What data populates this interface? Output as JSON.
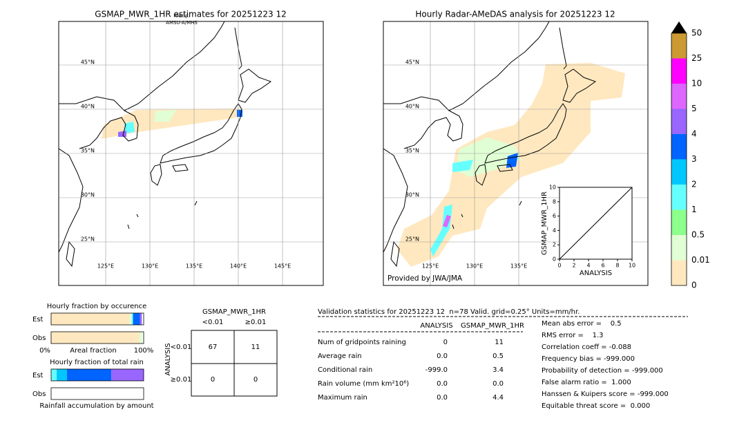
{
  "maps": [
    {
      "title": "GSMAP_MWR_1HR estimates for 20251223 12",
      "annotation": [
        "Precip.",
        "AMSU-A/MHS"
      ],
      "lat_labels": [
        "45°N",
        "40°N",
        "35°N",
        "30°N",
        "25°N"
      ],
      "lon_labels": [
        "125°E",
        "130°E",
        "135°E",
        "140°E",
        "145°E"
      ]
    },
    {
      "title": "Hourly Radar-AMeDAS analysis for 20251223 12",
      "credit": "Provided by JWA/JMA",
      "lat_labels": [
        "45°N",
        "40°N",
        "35°N",
        "30°N",
        "25°N"
      ],
      "lon_labels": [
        "125°E",
        "130°E",
        "135°E"
      ]
    }
  ],
  "colorbar": {
    "labels": [
      "0",
      "0.01",
      "0.5",
      "1",
      "2",
      "3",
      "4",
      "5",
      "10",
      "25",
      "50"
    ],
    "colors": [
      "#ffe8bf",
      "#e0ffd4",
      "#8cff8c",
      "#66ffff",
      "#00c8ff",
      "#0064ff",
      "#9966ff",
      "#dd66ff",
      "#ff00ff",
      "#cc9933"
    ]
  },
  "scatter_inset": {
    "xlabel": "ANALYSIS",
    "ylabel": "GSMAP_MWR_1HR",
    "xlim": [
      0,
      10
    ],
    "ylim": [
      0,
      10
    ],
    "xticks": [
      0,
      2,
      4,
      6,
      8,
      10
    ],
    "yticks": [
      0,
      2,
      4,
      6,
      8,
      10
    ]
  },
  "fraction_occurrence": {
    "title": "Hourly fraction by occurence",
    "axis_labels": [
      "0%",
      "Areal fraction",
      "100%"
    ],
    "rows": [
      {
        "label": "Est",
        "segments": [
          {
            "color": "#ffe8bf",
            "value": 85
          },
          {
            "color": "#e0ffd4",
            "value": 2
          },
          {
            "color": "#66ffff",
            "value": 1.5
          },
          {
            "color": "#0064ff",
            "value": 7.5
          },
          {
            "color": "#9966ff",
            "value": 2
          }
        ]
      },
      {
        "label": "Obs",
        "segments": [
          {
            "color": "#ffe8bf",
            "value": 95.5
          },
          {
            "color": "#e0ffd4",
            "value": 3
          }
        ]
      }
    ]
  },
  "fraction_rain": {
    "title": "Hourly fraction of total rain",
    "footer": "Rainfall accumulation by amount",
    "rows": [
      {
        "label": "Est",
        "segments": [
          {
            "color": "#66ffff",
            "value": 6
          },
          {
            "color": "#00c8ff",
            "value": 11
          },
          {
            "color": "#0064ff",
            "value": 48
          },
          {
            "color": "#9966ff",
            "value": 35
          }
        ]
      },
      {
        "label": "Obs",
        "segments": []
      }
    ]
  },
  "contingency": {
    "title": "GSMAP_MWR_1HR",
    "col_labels": [
      "<0.01",
      "≥0.01"
    ],
    "row_title": "ANALYSIS",
    "row_labels": [
      "<0.01",
      "≥0.01"
    ],
    "cells": [
      [
        "67",
        "11"
      ],
      [
        "0",
        "0"
      ]
    ]
  },
  "statistics": {
    "title": "Validation statistics for 20251223 12  n=78 Valid. grid=0.25° Units=mm/hr.",
    "headers": [
      "ANALYSIS",
      "GSMAP_MWR_1HR"
    ],
    "rows": [
      [
        "Num of gridpoints raining",
        "0",
        "11"
      ],
      [
        "Average rain",
        "0.0",
        "0.5"
      ],
      [
        "Conditional rain",
        "-999.0",
        "3.4"
      ],
      [
        "Rain volume (mm km²10⁶)",
        "0.0",
        "0.0"
      ],
      [
        "Maximum rain",
        "0.0",
        "4.4"
      ]
    ],
    "scores": [
      "Mean abs error =    0.5",
      "RMS error =    1.3",
      "Correlation coeff = -0.088",
      "Frequency bias = -999.000",
      "Probability of detection = -999.000",
      "False alarm ratio =  1.000",
      "Hanssen & Kuipers score = -999.000",
      "Equitable threat score =  0.000"
    ]
  }
}
